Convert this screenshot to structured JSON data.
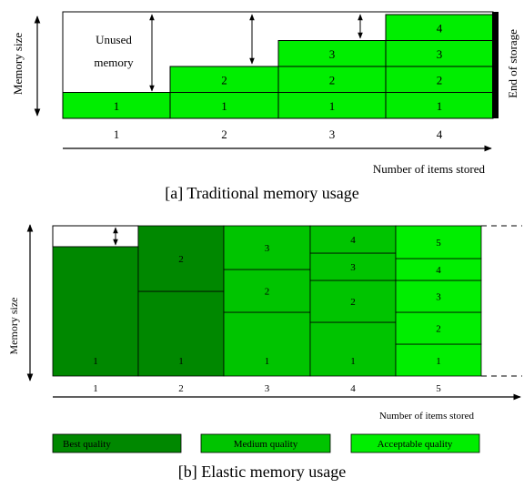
{
  "panel_a": {
    "caption": "[a] Traditional memory usage",
    "y_label": "Memory size",
    "right_label": "End of storage",
    "x_label": "Number of items stored",
    "unused_label_line1": "Unused",
    "unused_label_line2": "memory",
    "x_ticks": [
      "1",
      "2",
      "3",
      "4"
    ],
    "columns": [
      {
        "items": [
          "1"
        ]
      },
      {
        "items": [
          "1",
          "2"
        ]
      },
      {
        "items": [
          "1",
          "2",
          "3"
        ]
      },
      {
        "items": [
          "1",
          "2",
          "3",
          "4"
        ]
      }
    ],
    "fill_color": "#00ee00"
  },
  "panel_b": {
    "caption": "[b] Elastic memory usage",
    "y_label": "Memory size",
    "x_label": "Number of items stored",
    "x_ticks": [
      "1",
      "2",
      "3",
      "4",
      "5"
    ],
    "columns": [
      {
        "items": [
          "1"
        ]
      },
      {
        "items": [
          "1",
          "2"
        ]
      },
      {
        "items": [
          "1",
          "2",
          "3"
        ]
      },
      {
        "items": [
          "1",
          "2",
          "3",
          "4"
        ]
      },
      {
        "items": [
          "1",
          "2",
          "3",
          "4",
          "5"
        ]
      }
    ],
    "legend": [
      {
        "label": "Best quality",
        "color": "#008800"
      },
      {
        "label": "Medium quality",
        "color": "#00c400"
      },
      {
        "label": "Acceptable quality",
        "color": "#00ee00"
      }
    ]
  }
}
